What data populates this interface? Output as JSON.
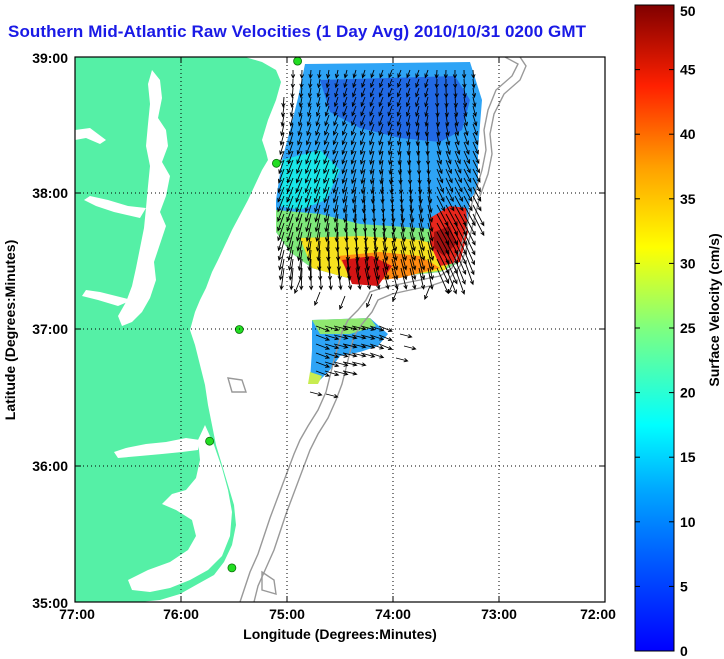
{
  "title": "Southern Mid-Atlantic Raw Velocities (1 Day Avg) 2010/10/31 0200 GMT",
  "map": {
    "xlabel": "Longitude (Degrees:Minutes)",
    "ylabel": "Latitude (Degrees:Minutes)",
    "lon_range": [
      -77,
      -72
    ],
    "lat_range": [
      35,
      39
    ],
    "x_ticks": [
      "77:00",
      "76:00",
      "75:00",
      "74:00",
      "73:00",
      "72:00"
    ],
    "y_ticks": [
      "35:00",
      "36:00",
      "37:00",
      "38:00",
      "39:00"
    ],
    "grid": "dotted"
  },
  "colorbar": {
    "label": "Surface Velocity (cm/s)",
    "ticks": [
      "0",
      "5",
      "10",
      "15",
      "20",
      "25",
      "30",
      "35",
      "40",
      "45",
      "50"
    ],
    "range": [
      0,
      50
    ],
    "colormap": "jet"
  },
  "colors": {
    "land": "#55f0a6",
    "title": "#1a1ae6",
    "stations": "#22dd22",
    "bathymetry": "#999999"
  },
  "stations": [
    {
      "lon": -74.9,
      "lat": 38.97
    },
    {
      "lon": -75.1,
      "lat": 38.22
    },
    {
      "lon": -75.45,
      "lat": 37.0
    },
    {
      "lon": -75.73,
      "lat": 36.18
    },
    {
      "lon": -75.52,
      "lat": 35.25
    }
  ]
}
